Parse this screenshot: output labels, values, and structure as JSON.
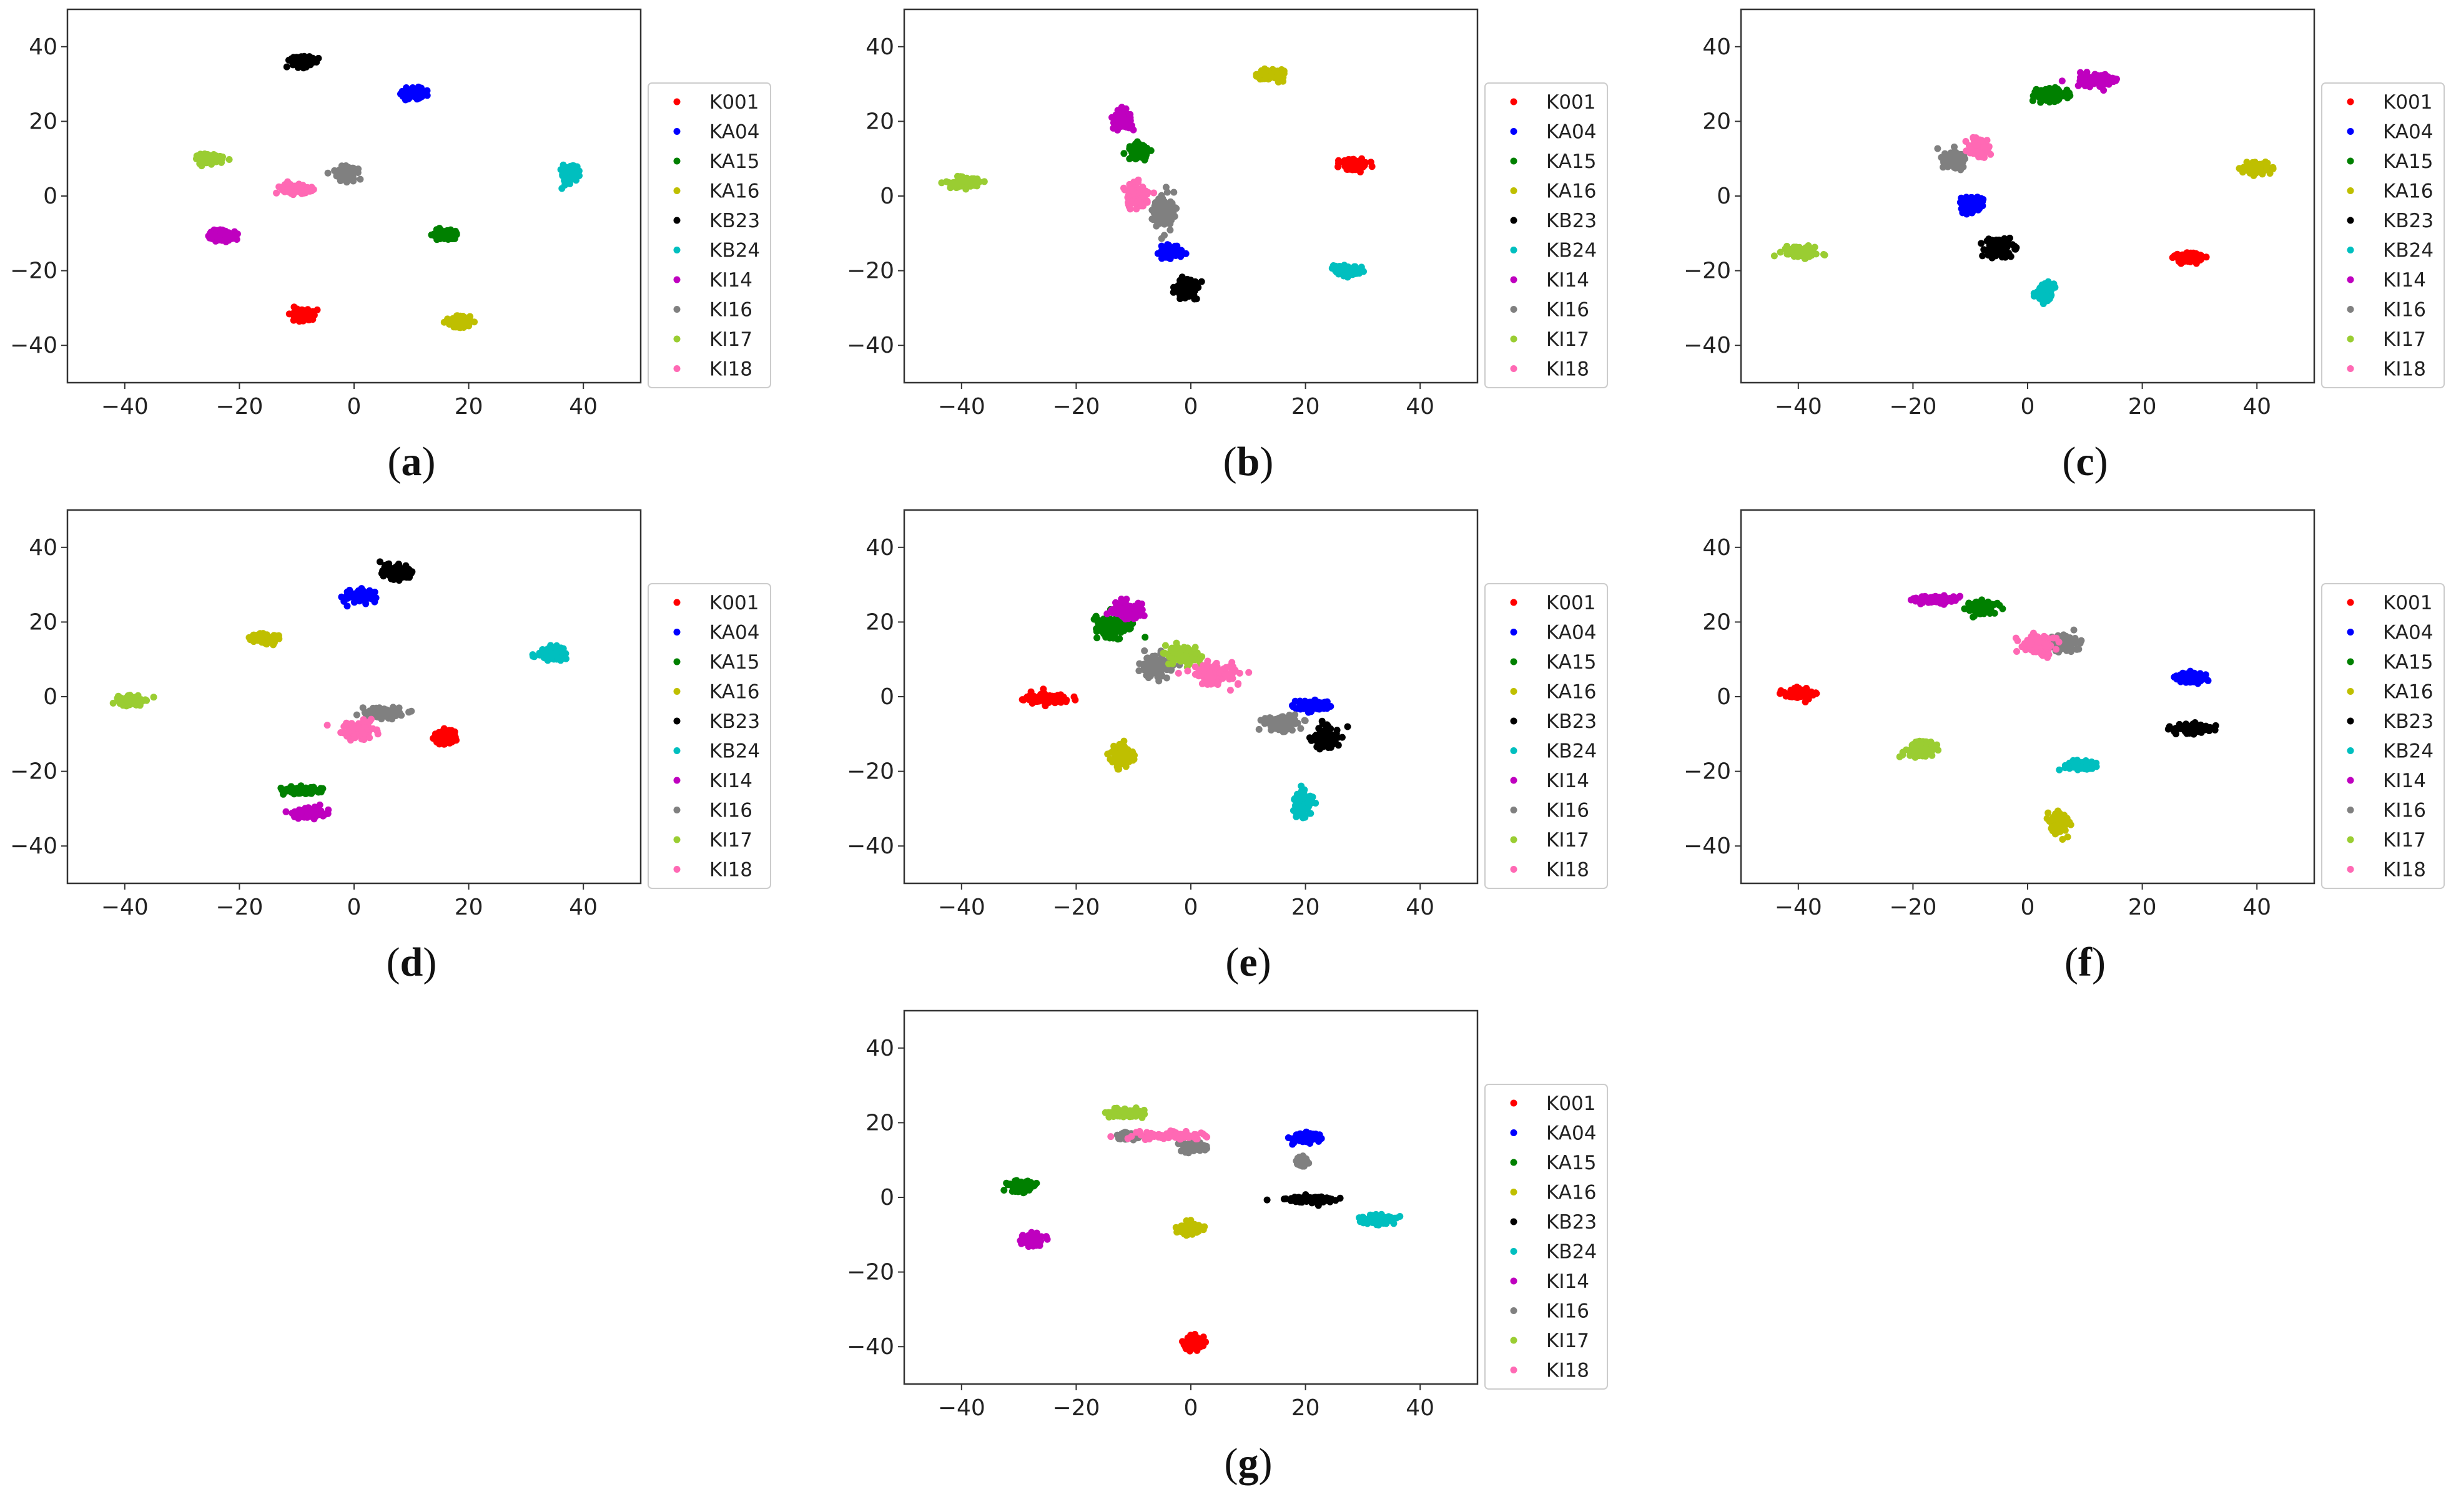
{
  "chart_data": [
    {
      "type": "scatter",
      "caption": "(a)",
      "caption_letter": "a",
      "xlim": [
        -50,
        50
      ],
      "ylim": [
        -50,
        50
      ],
      "xticks": [
        "−40",
        "−20",
        "0",
        "20",
        "40"
      ],
      "yticks": [
        "40",
        "20",
        "0",
        "−20",
        "−40"
      ],
      "series": [
        {
          "name": "K001",
          "color": "#ff0000",
          "clusters": [
            {
              "cx": -9,
              "cy": -32,
              "rx": 2,
              "ry": 2
            }
          ]
        },
        {
          "name": "KA04",
          "color": "#0000ff",
          "clusters": [
            {
              "cx": 10.5,
              "cy": 27.5,
              "rx": 2,
              "ry": 1.5
            }
          ]
        },
        {
          "name": "KA15",
          "color": "#008000",
          "clusters": [
            {
              "cx": 16,
              "cy": -10.5,
              "rx": 2.5,
              "ry": 1.5
            }
          ]
        },
        {
          "name": "KA16",
          "color": "#bfbf00",
          "clusters": [
            {
              "cx": 18.5,
              "cy": -34,
              "rx": 2.2,
              "ry": 1.8
            }
          ]
        },
        {
          "name": "KB23",
          "color": "#000000",
          "clusters": [
            {
              "cx": -9,
              "cy": 36,
              "rx": 2.5,
              "ry": 1.3
            }
          ]
        },
        {
          "name": "KB24",
          "color": "#00bfbf",
          "clusters": [
            {
              "cx": 37.5,
              "cy": 6,
              "rx": 1.5,
              "ry": 2.2
            }
          ]
        },
        {
          "name": "KI14",
          "color": "#bf00bf",
          "clusters": [
            {
              "cx": -23,
              "cy": -10.5,
              "rx": 2.5,
              "ry": 1.5
            }
          ]
        },
        {
          "name": "KI16",
          "color": "#808080",
          "clusters": [
            {
              "cx": -1.5,
              "cy": 6,
              "rx": 2,
              "ry": 2
            }
          ]
        },
        {
          "name": "KI17",
          "color": "#9acd32",
          "clusters": [
            {
              "cx": -25.5,
              "cy": 10,
              "rx": 2.5,
              "ry": 1.5
            }
          ]
        },
        {
          "name": "KI18",
          "color": "#ff69b4",
          "clusters": [
            {
              "cx": -10,
              "cy": 2,
              "rx": 3,
              "ry": 1.5
            }
          ]
        }
      ]
    },
    {
      "type": "scatter",
      "caption": "(b)",
      "caption_letter": "b",
      "xlim": [
        -50,
        50
      ],
      "ylim": [
        -50,
        50
      ],
      "xticks": [
        "−40",
        "−20",
        "0",
        "20",
        "40"
      ],
      "yticks": [
        "40",
        "20",
        "0",
        "−20",
        "−40"
      ],
      "series": [
        {
          "name": "K001",
          "color": "#ff0000",
          "clusters": [
            {
              "cx": 28.5,
              "cy": 8.5,
              "rx": 2.5,
              "ry": 1.8
            }
          ]
        },
        {
          "name": "KA04",
          "color": "#0000ff",
          "clusters": [
            {
              "cx": -3.5,
              "cy": -15,
              "rx": 2,
              "ry": 2
            }
          ]
        },
        {
          "name": "KA15",
          "color": "#008000",
          "clusters": [
            {
              "cx": -9,
              "cy": 12,
              "rx": 2,
              "ry": 2.5
            }
          ]
        },
        {
          "name": "KA16",
          "color": "#bfbf00",
          "clusters": [
            {
              "cx": 14,
              "cy": 32.5,
              "rx": 2.5,
              "ry": 1.5
            }
          ]
        },
        {
          "name": "KB23",
          "color": "#000000",
          "clusters": [
            {
              "cx": -1,
              "cy": -25,
              "rx": 2,
              "ry": 3
            }
          ]
        },
        {
          "name": "KB24",
          "color": "#00bfbf",
          "clusters": [
            {
              "cx": 27,
              "cy": -20,
              "rx": 2.5,
              "ry": 1.5
            }
          ]
        },
        {
          "name": "KI14",
          "color": "#bf00bf",
          "clusters": [
            {
              "cx": -12,
              "cy": 20.5,
              "rx": 1.8,
              "ry": 2.5
            }
          ]
        },
        {
          "name": "KI16",
          "color": "#808080",
          "clusters": [
            {
              "cx": -4.5,
              "cy": -4,
              "rx": 2,
              "ry": 5
            }
          ]
        },
        {
          "name": "KI17",
          "color": "#9acd32",
          "clusters": [
            {
              "cx": -39.5,
              "cy": 3.5,
              "rx": 2.8,
              "ry": 1.3
            }
          ]
        },
        {
          "name": "KI18",
          "color": "#ff69b4",
          "clusters": [
            {
              "cx": -9.5,
              "cy": 0,
              "rx": 2.5,
              "ry": 3.5
            }
          ]
        }
      ]
    },
    {
      "type": "scatter",
      "caption": "(c)",
      "caption_letter": "c",
      "xlim": [
        -50,
        50
      ],
      "ylim": [
        -50,
        50
      ],
      "xticks": [
        "−40",
        "−20",
        "0",
        "20",
        "40"
      ],
      "yticks": [
        "40",
        "20",
        "0",
        "−20",
        "−40"
      ],
      "series": [
        {
          "name": "K001",
          "color": "#ff0000",
          "clusters": [
            {
              "cx": 28,
              "cy": -16.5,
              "rx": 2.8,
              "ry": 1.5
            }
          ]
        },
        {
          "name": "KA04",
          "color": "#0000ff",
          "clusters": [
            {
              "cx": -10,
              "cy": -2.5,
              "rx": 2,
              "ry": 2.5
            }
          ]
        },
        {
          "name": "KA15",
          "color": "#008000",
          "clusters": [
            {
              "cx": 4,
              "cy": 27,
              "rx": 3,
              "ry": 1.8
            }
          ]
        },
        {
          "name": "KA16",
          "color": "#bfbf00",
          "clusters": [
            {
              "cx": 40,
              "cy": 7.5,
              "rx": 2.5,
              "ry": 1.5
            }
          ]
        },
        {
          "name": "KB23",
          "color": "#000000",
          "clusters": [
            {
              "cx": -5,
              "cy": -14,
              "rx": 2.5,
              "ry": 2.5
            }
          ]
        },
        {
          "name": "KB24",
          "color": "#00bfbf",
          "clusters": [
            {
              "cx": 3,
              "cy": -26,
              "rx": 1.5,
              "ry": 3
            }
          ]
        },
        {
          "name": "KI14",
          "color": "#bf00bf",
          "clusters": [
            {
              "cx": 12,
              "cy": 31,
              "rx": 3.5,
              "ry": 1.8
            }
          ]
        },
        {
          "name": "KI16",
          "color": "#808080",
          "clusters": [
            {
              "cx": -13,
              "cy": 9.5,
              "rx": 2,
              "ry": 2.5
            }
          ]
        },
        {
          "name": "KI17",
          "color": "#9acd32",
          "clusters": [
            {
              "cx": -39.5,
              "cy": -15,
              "rx": 3,
              "ry": 1.5
            }
          ]
        },
        {
          "name": "KI18",
          "color": "#ff69b4",
          "clusters": [
            {
              "cx": -8.5,
              "cy": 13,
              "rx": 2,
              "ry": 2.5
            }
          ]
        }
      ]
    },
    {
      "type": "scatter",
      "caption": "(d)",
      "caption_letter": "d",
      "xlim": [
        -50,
        50
      ],
      "ylim": [
        -50,
        50
      ],
      "xticks": [
        "−40",
        "−20",
        "0",
        "20",
        "40"
      ],
      "yticks": [
        "40",
        "20",
        "0",
        "−20",
        "−40"
      ],
      "series": [
        {
          "name": "K001",
          "color": "#ff0000",
          "clusters": [
            {
              "cx": 16,
              "cy": -11,
              "rx": 2,
              "ry": 2
            }
          ]
        },
        {
          "name": "KA04",
          "color": "#0000ff",
          "clusters": [
            {
              "cx": 1,
              "cy": 27,
              "rx": 2.5,
              "ry": 1.8
            }
          ]
        },
        {
          "name": "KA15",
          "color": "#008000",
          "clusters": [
            {
              "cx": -9,
              "cy": -25,
              "rx": 4,
              "ry": 1.3
            }
          ]
        },
        {
          "name": "KA16",
          "color": "#bfbf00",
          "clusters": [
            {
              "cx": -15.5,
              "cy": 15.5,
              "rx": 2.8,
              "ry": 1.3
            }
          ]
        },
        {
          "name": "KB23",
          "color": "#000000",
          "clusters": [
            {
              "cx": 7.5,
              "cy": 33.5,
              "rx": 3,
              "ry": 2
            }
          ]
        },
        {
          "name": "KB24",
          "color": "#00bfbf",
          "clusters": [
            {
              "cx": 34.5,
              "cy": 11.5,
              "rx": 2.5,
              "ry": 2
            }
          ]
        },
        {
          "name": "KI14",
          "color": "#bf00bf",
          "clusters": [
            {
              "cx": -8,
              "cy": -31,
              "rx": 3.5,
              "ry": 1.5
            }
          ]
        },
        {
          "name": "KI16",
          "color": "#808080",
          "clusters": [
            {
              "cx": 5,
              "cy": -4.5,
              "rx": 3.5,
              "ry": 1.5
            }
          ]
        },
        {
          "name": "KI17",
          "color": "#9acd32",
          "clusters": [
            {
              "cx": -39,
              "cy": -1,
              "rx": 2.8,
              "ry": 1.5
            }
          ]
        },
        {
          "name": "KI18",
          "color": "#ff69b4",
          "clusters": [
            {
              "cx": 1,
              "cy": -9,
              "rx": 3,
              "ry": 2.5
            }
          ]
        }
      ]
    },
    {
      "type": "scatter",
      "caption": "(e)",
      "caption_letter": "e",
      "xlim": [
        -50,
        50
      ],
      "ylim": [
        -50,
        50
      ],
      "xticks": [
        "−40",
        "−20",
        "0",
        "20",
        "40"
      ],
      "yticks": [
        "40",
        "20",
        "0",
        "−20",
        "−40"
      ],
      "series": [
        {
          "name": "K001",
          "color": "#ff0000",
          "clusters": [
            {
              "cx": -25,
              "cy": -0.5,
              "rx": 3.5,
              "ry": 1.5
            }
          ]
        },
        {
          "name": "KA04",
          "color": "#0000ff",
          "clusters": [
            {
              "cx": 21,
              "cy": -2.5,
              "rx": 3,
              "ry": 1.5
            }
          ]
        },
        {
          "name": "KA15",
          "color": "#008000",
          "clusters": [
            {
              "cx": -13.5,
              "cy": 19,
              "rx": 3.5,
              "ry": 3.5
            }
          ]
        },
        {
          "name": "KA16",
          "color": "#bfbf00",
          "clusters": [
            {
              "cx": -12,
              "cy": -16,
              "rx": 2,
              "ry": 3
            }
          ]
        },
        {
          "name": "KB23",
          "color": "#000000",
          "clusters": [
            {
              "cx": 23.5,
              "cy": -11,
              "rx": 2.5,
              "ry": 3.5
            }
          ]
        },
        {
          "name": "KB24",
          "color": "#00bfbf",
          "clusters": [
            {
              "cx": 19.5,
              "cy": -28.5,
              "rx": 2,
              "ry": 3.5
            }
          ]
        },
        {
          "name": "KI14",
          "color": "#bf00bf",
          "clusters": [
            {
              "cx": -11,
              "cy": 23,
              "rx": 3,
              "ry": 2.5
            }
          ]
        },
        {
          "name": "KI16",
          "color": "#808080",
          "clusters": [
            {
              "cx": -6,
              "cy": 8,
              "rx": 3.5,
              "ry": 3.5
            },
            {
              "cx": 16,
              "cy": -7,
              "rx": 3,
              "ry": 2.5
            }
          ]
        },
        {
          "name": "KI17",
          "color": "#9acd32",
          "clusters": [
            {
              "cx": -1,
              "cy": 11,
              "rx": 3.5,
              "ry": 3
            }
          ]
        },
        {
          "name": "KI18",
          "color": "#ff69b4",
          "clusters": [
            {
              "cx": 4,
              "cy": 6,
              "rx": 4.5,
              "ry": 3.5
            }
          ]
        }
      ]
    },
    {
      "type": "scatter",
      "caption": "(f)",
      "caption_letter": "f",
      "xlim": [
        -50,
        50
      ],
      "ylim": [
        -50,
        50
      ],
      "xticks": [
        "−40",
        "−20",
        "0",
        "20",
        "40"
      ],
      "yticks": [
        "40",
        "20",
        "0",
        "−20",
        "−40"
      ],
      "series": [
        {
          "name": "K001",
          "color": "#ff0000",
          "clusters": [
            {
              "cx": -40,
              "cy": 1,
              "rx": 2.5,
              "ry": 1.5
            }
          ]
        },
        {
          "name": "KA04",
          "color": "#0000ff",
          "clusters": [
            {
              "cx": 28.5,
              "cy": 5,
              "rx": 2.5,
              "ry": 1.3
            }
          ]
        },
        {
          "name": "KA15",
          "color": "#008000",
          "clusters": [
            {
              "cx": -8,
              "cy": 24,
              "rx": 2.5,
              "ry": 2
            }
          ]
        },
        {
          "name": "KA16",
          "color": "#bfbf00",
          "clusters": [
            {
              "cx": 5.5,
              "cy": -34,
              "rx": 1.8,
              "ry": 3
            }
          ]
        },
        {
          "name": "KB23",
          "color": "#000000",
          "clusters": [
            {
              "cx": 28.5,
              "cy": -8.5,
              "rx": 3,
              "ry": 1.5
            }
          ]
        },
        {
          "name": "KB24",
          "color": "#00bfbf",
          "clusters": [
            {
              "cx": 9,
              "cy": -18.5,
              "rx": 3,
              "ry": 1.2
            }
          ]
        },
        {
          "name": "KI14",
          "color": "#bf00bf",
          "clusters": [
            {
              "cx": -16,
              "cy": 26,
              "rx": 4,
              "ry": 1.2
            }
          ]
        },
        {
          "name": "KI16",
          "color": "#808080",
          "clusters": [
            {
              "cx": 6.5,
              "cy": 14.5,
              "rx": 2.5,
              "ry": 3
            }
          ]
        },
        {
          "name": "KI17",
          "color": "#9acd32",
          "clusters": [
            {
              "cx": -18.5,
              "cy": -14,
              "rx": 2.5,
              "ry": 2.5
            }
          ]
        },
        {
          "name": "KI18",
          "color": "#ff69b4",
          "clusters": [
            {
              "cx": 2,
              "cy": 14,
              "rx": 3,
              "ry": 3
            }
          ]
        }
      ]
    },
    {
      "type": "scatter",
      "caption": "(g)",
      "caption_letter": "g",
      "xlim": [
        -50,
        50
      ],
      "ylim": [
        -50,
        50
      ],
      "xticks": [
        "−40",
        "−20",
        "0",
        "20",
        "40"
      ],
      "yticks": [
        "40",
        "20",
        "0",
        "−20",
        "−40"
      ],
      "series": [
        {
          "name": "K001",
          "color": "#ff0000",
          "clusters": [
            {
              "cx": 0.5,
              "cy": -39,
              "rx": 2,
              "ry": 1.8
            }
          ]
        },
        {
          "name": "KA04",
          "color": "#0000ff",
          "clusters": [
            {
              "cx": 20,
              "cy": 16,
              "rx": 2.5,
              "ry": 1.5
            }
          ]
        },
        {
          "name": "KA15",
          "color": "#008000",
          "clusters": [
            {
              "cx": -29.5,
              "cy": 3,
              "rx": 2.5,
              "ry": 1.5
            }
          ]
        },
        {
          "name": "KA16",
          "color": "#bfbf00",
          "clusters": [
            {
              "cx": 0,
              "cy": -8.5,
              "rx": 2.2,
              "ry": 1.8
            }
          ]
        },
        {
          "name": "KB23",
          "color": "#000000",
          "clusters": [
            {
              "cx": 21,
              "cy": -0.5,
              "rx": 4,
              "ry": 1
            }
          ]
        },
        {
          "name": "KB24",
          "color": "#00bfbf",
          "clusters": [
            {
              "cx": 32.5,
              "cy": -6,
              "rx": 3.5,
              "ry": 1.5
            }
          ]
        },
        {
          "name": "KI14",
          "color": "#bf00bf",
          "clusters": [
            {
              "cx": -27.5,
              "cy": -11.5,
              "rx": 2.2,
              "ry": 1.8
            }
          ]
        },
        {
          "name": "KI16",
          "color": "#808080",
          "clusters": [
            {
              "cx": -11,
              "cy": 16.5,
              "rx": 2,
              "ry": 1
            },
            {
              "cx": 0.5,
              "cy": 13.5,
              "rx": 2,
              "ry": 1.3
            },
            {
              "cx": 19.5,
              "cy": 9.5,
              "rx": 1,
              "ry": 1.3
            }
          ]
        },
        {
          "name": "KI17",
          "color": "#9acd32",
          "clusters": [
            {
              "cx": -11.5,
              "cy": 22.5,
              "rx": 3.5,
              "ry": 1.3
            }
          ]
        },
        {
          "name": "KI18",
          "color": "#ff69b4",
          "clusters": [
            {
              "cx": -3.5,
              "cy": 16.5,
              "rx": 6,
              "ry": 1
            }
          ]
        }
      ]
    }
  ]
}
